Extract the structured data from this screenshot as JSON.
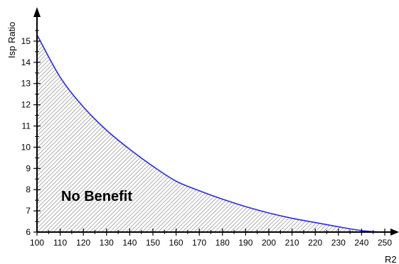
{
  "chart_data": {
    "type": "area",
    "title": "",
    "xlabel": "R2",
    "ylabel": "Isp Ratio",
    "xlim": [
      100,
      250
    ],
    "ylim": [
      6,
      15.5
    ],
    "x_ticks": [
      100,
      110,
      120,
      130,
      140,
      150,
      160,
      170,
      180,
      190,
      200,
      210,
      220,
      230,
      240,
      250
    ],
    "y_ticks": [
      6,
      7,
      8,
      9,
      10,
      11,
      12,
      13,
      14,
      15
    ],
    "grid": false,
    "legend": "none",
    "series": [
      {
        "color": "#2b2be0",
        "fill_pattern": "diagonal-hatch",
        "x": [
          100,
          110,
          120,
          130,
          140,
          150,
          160,
          170,
          180,
          190,
          200,
          210,
          220,
          230,
          240,
          248
        ],
        "y": [
          15.3,
          13.3,
          11.9,
          10.8,
          9.9,
          9.1,
          8.4,
          7.95,
          7.55,
          7.2,
          6.9,
          6.65,
          6.45,
          6.25,
          6.07,
          6.0
        ]
      }
    ],
    "annotations": [
      {
        "text": "No Benefit",
        "x": 130,
        "y": 7.55
      }
    ]
  }
}
